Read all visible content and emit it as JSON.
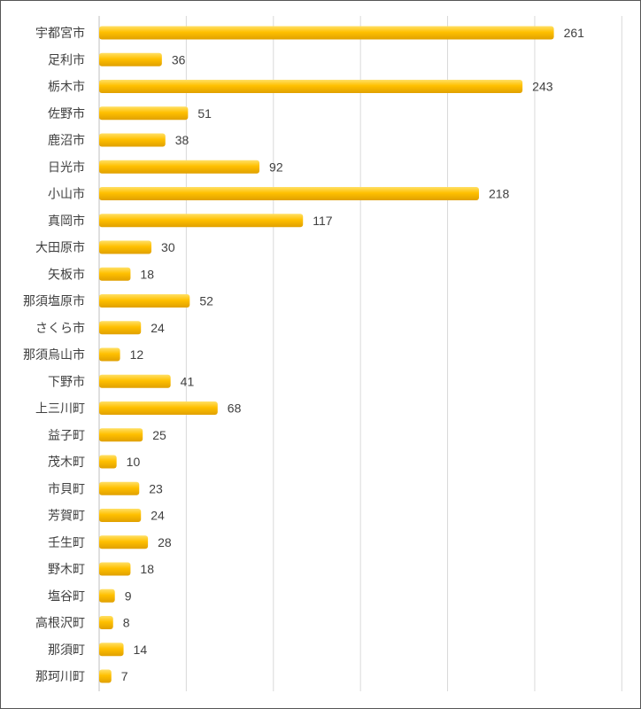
{
  "chart_data": {
    "type": "bar",
    "orientation": "horizontal",
    "categories": [
      "宇都宮市",
      "足利市",
      "栃木市",
      "佐野市",
      "鹿沼市",
      "日光市",
      "小山市",
      "真岡市",
      "大田原市",
      "矢板市",
      "那須塩原市",
      "さくら市",
      "那須烏山市",
      "下野市",
      "上三川町",
      "益子町",
      "茂木町",
      "市貝町",
      "芳賀町",
      "壬生町",
      "野木町",
      "塩谷町",
      "高根沢町",
      "那須町",
      "那珂川町"
    ],
    "values": [
      261,
      36,
      243,
      51,
      38,
      92,
      218,
      117,
      30,
      18,
      52,
      24,
      12,
      41,
      68,
      25,
      10,
      23,
      24,
      28,
      18,
      9,
      8,
      14,
      7
    ],
    "xlim": [
      0,
      310
    ],
    "grid_step": 50,
    "grid": true,
    "legend": "none",
    "data_labels": true,
    "colors": {
      "bar_top": "#FFD43A",
      "bar_bottom": "#E9A800",
      "grid": "#D9D9D9",
      "axis": "#BFBFBF",
      "text": "#404040"
    }
  }
}
